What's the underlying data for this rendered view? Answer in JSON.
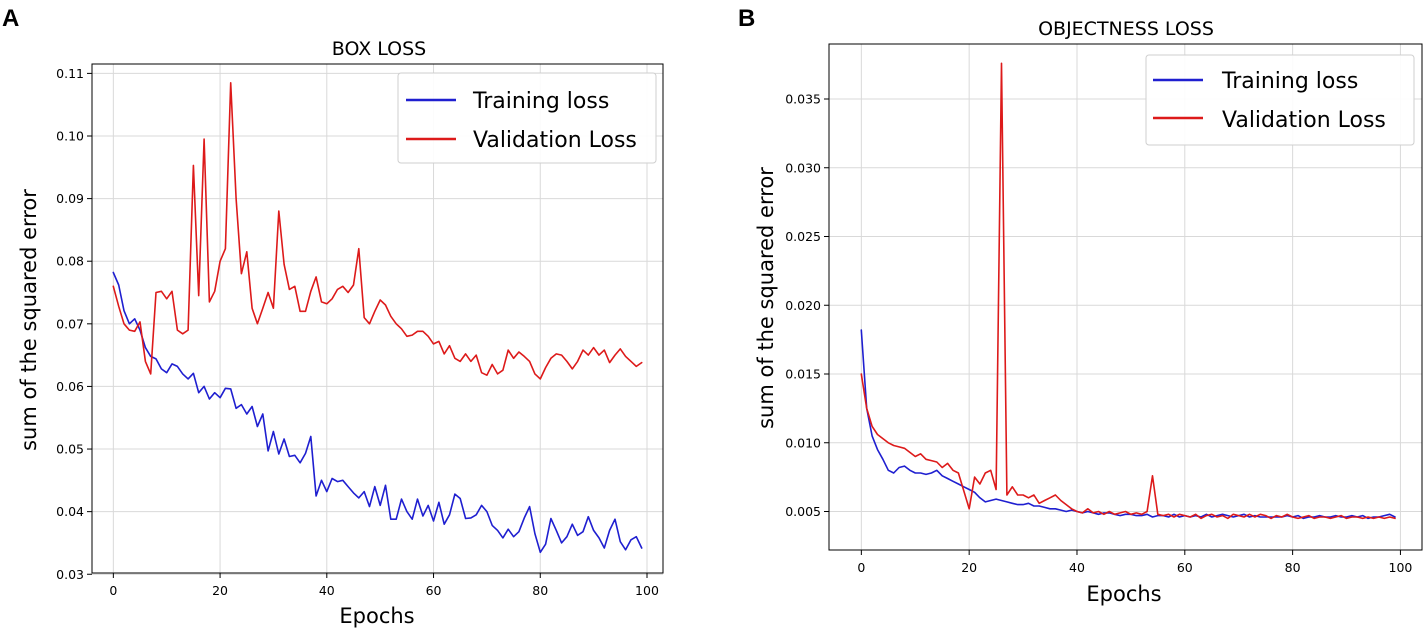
{
  "chart_data": [
    {
      "panel": "A",
      "type": "line",
      "title": "BOX LOSS",
      "xlabel": "Epochs",
      "ylabel": "sum of the squared error",
      "xlim": [
        -4,
        103
      ],
      "ylim": [
        0.0302,
        0.1115
      ],
      "xticks": [
        0,
        20,
        40,
        60,
        80,
        100
      ],
      "xtick_labels": [
        "0",
        "20",
        "40",
        "60",
        "80",
        "100"
      ],
      "yticks": [
        0.03,
        0.04,
        0.05,
        0.06,
        0.07,
        0.08,
        0.09,
        0.1,
        0.11
      ],
      "ytick_labels": [
        "0.03",
        "0.04",
        "0.05",
        "0.06",
        "0.07",
        "0.08",
        "0.09",
        "0.10",
        "0.11"
      ],
      "grid": true,
      "legend_position": "top-right",
      "series": [
        {
          "name": "Training loss",
          "color": "#1f1fd0",
          "x": [
            0,
            1,
            2,
            3,
            4,
            5,
            6,
            7,
            8,
            9,
            10,
            11,
            12,
            13,
            14,
            15,
            16,
            17,
            18,
            19,
            20,
            21,
            22,
            23,
            24,
            25,
            26,
            27,
            28,
            29,
            30,
            31,
            32,
            33,
            34,
            35,
            36,
            37,
            38,
            39,
            40,
            41,
            42,
            43,
            44,
            45,
            46,
            47,
            48,
            49,
            50,
            51,
            52,
            53,
            54,
            55,
            56,
            57,
            58,
            59,
            60,
            61,
            62,
            63,
            64,
            65,
            66,
            67,
            68,
            69,
            70,
            71,
            72,
            73,
            74,
            75,
            76,
            77,
            78,
            79,
            80,
            81,
            82,
            83,
            84,
            85,
            86,
            87,
            88,
            89,
            90,
            91,
            92,
            93,
            94,
            95,
            96,
            97,
            98,
            99
          ],
          "values": [
            0.0782,
            0.0762,
            0.0721,
            0.07,
            0.0708,
            0.069,
            0.0662,
            0.0648,
            0.0644,
            0.0628,
            0.0622,
            0.0636,
            0.0632,
            0.062,
            0.0612,
            0.0621,
            0.059,
            0.06,
            0.058,
            0.059,
            0.0582,
            0.0597,
            0.0596,
            0.0565,
            0.0571,
            0.0556,
            0.0568,
            0.0536,
            0.0556,
            0.0497,
            0.0528,
            0.0492,
            0.0516,
            0.0488,
            0.049,
            0.0478,
            0.0493,
            0.052,
            0.0425,
            0.045,
            0.0432,
            0.0453,
            0.0448,
            0.045,
            0.044,
            0.043,
            0.0422,
            0.0432,
            0.0408,
            0.044,
            0.041,
            0.0442,
            0.0388,
            0.0388,
            0.042,
            0.04,
            0.0388,
            0.042,
            0.0393,
            0.041,
            0.0385,
            0.0415,
            0.038,
            0.0395,
            0.0428,
            0.0421,
            0.0389,
            0.039,
            0.0395,
            0.041,
            0.04,
            0.0378,
            0.037,
            0.0358,
            0.0372,
            0.036,
            0.0368,
            0.039,
            0.0408,
            0.0365,
            0.0335,
            0.0348,
            0.0389,
            0.037,
            0.035,
            0.036,
            0.038,
            0.0362,
            0.0368,
            0.0392,
            0.037,
            0.0358,
            0.0342,
            0.037,
            0.0388,
            0.0352,
            0.0339,
            0.0355,
            0.036,
            0.0342
          ]
        },
        {
          "name": "Validation Loss",
          "color": "#dd1a1a",
          "x": [
            0,
            1,
            2,
            3,
            4,
            5,
            6,
            7,
            8,
            9,
            10,
            11,
            12,
            13,
            14,
            15,
            16,
            17,
            18,
            19,
            20,
            21,
            22,
            23,
            24,
            25,
            26,
            27,
            28,
            29,
            30,
            31,
            32,
            33,
            34,
            35,
            36,
            37,
            38,
            39,
            40,
            41,
            42,
            43,
            44,
            45,
            46,
            47,
            48,
            49,
            50,
            51,
            52,
            53,
            54,
            55,
            56,
            57,
            58,
            59,
            60,
            61,
            62,
            63,
            64,
            65,
            66,
            67,
            68,
            69,
            70,
            71,
            72,
            73,
            74,
            75,
            76,
            77,
            78,
            79,
            80,
            81,
            82,
            83,
            84,
            85,
            86,
            87,
            88,
            89,
            90,
            91,
            92,
            93,
            94,
            95,
            96,
            97,
            98,
            99
          ],
          "values": [
            0.076,
            0.0728,
            0.07,
            0.069,
            0.0688,
            0.0703,
            0.064,
            0.062,
            0.075,
            0.0752,
            0.074,
            0.0752,
            0.069,
            0.0684,
            0.069,
            0.0953,
            0.0745,
            0.0995,
            0.0735,
            0.0752,
            0.08,
            0.082,
            0.1085,
            0.09,
            0.078,
            0.0815,
            0.0725,
            0.07,
            0.0725,
            0.075,
            0.0725,
            0.088,
            0.0795,
            0.0755,
            0.076,
            0.072,
            0.072,
            0.0752,
            0.0775,
            0.0735,
            0.0732,
            0.074,
            0.0755,
            0.076,
            0.075,
            0.0762,
            0.082,
            0.071,
            0.07,
            0.072,
            0.0738,
            0.073,
            0.0712,
            0.07,
            0.0692,
            0.068,
            0.0682,
            0.0688,
            0.0688,
            0.068,
            0.0668,
            0.0672,
            0.0652,
            0.0665,
            0.0645,
            0.064,
            0.0652,
            0.064,
            0.065,
            0.0622,
            0.0618,
            0.0635,
            0.062,
            0.0626,
            0.0658,
            0.0645,
            0.0655,
            0.0648,
            0.064,
            0.062,
            0.0612,
            0.063,
            0.0645,
            0.0652,
            0.065,
            0.064,
            0.0628,
            0.064,
            0.0658,
            0.065,
            0.0662,
            0.065,
            0.0658,
            0.0638,
            0.065,
            0.066,
            0.0648,
            0.064,
            0.0632,
            0.0638
          ]
        }
      ]
    },
    {
      "panel": "B",
      "type": "line",
      "title": "OBJECTNESS LOSS",
      "xlabel": "Epochs",
      "ylabel": "sum of the squared error",
      "xlim": [
        -6,
        104
      ],
      "ylim": [
        0.0022,
        0.039
      ],
      "xticks": [
        0,
        20,
        40,
        60,
        80,
        100
      ],
      "xtick_labels": [
        "0",
        "20",
        "40",
        "60",
        "80",
        "100"
      ],
      "yticks": [
        0.005,
        0.01,
        0.015,
        0.02,
        0.025,
        0.03,
        0.035
      ],
      "ytick_labels": [
        "0.005",
        "0.010",
        "0.015",
        "0.020",
        "0.025",
        "0.030",
        "0.035"
      ],
      "grid": true,
      "legend_position": "top-right",
      "series": [
        {
          "name": "Training loss",
          "color": "#1f1fd0",
          "x": [
            0,
            1,
            2,
            3,
            4,
            5,
            6,
            7,
            8,
            9,
            10,
            11,
            12,
            13,
            14,
            15,
            16,
            17,
            18,
            19,
            20,
            21,
            22,
            23,
            24,
            25,
            26,
            27,
            28,
            29,
            30,
            31,
            32,
            33,
            34,
            35,
            36,
            37,
            38,
            39,
            40,
            41,
            42,
            43,
            44,
            45,
            46,
            47,
            48,
            49,
            50,
            51,
            52,
            53,
            54,
            55,
            56,
            57,
            58,
            59,
            60,
            61,
            62,
            63,
            64,
            65,
            66,
            67,
            68,
            69,
            70,
            71,
            72,
            73,
            74,
            75,
            76,
            77,
            78,
            79,
            80,
            81,
            82,
            83,
            84,
            85,
            86,
            87,
            88,
            89,
            90,
            91,
            92,
            93,
            94,
            95,
            96,
            97,
            98,
            99
          ],
          "values": [
            0.0182,
            0.0125,
            0.0105,
            0.0095,
            0.0088,
            0.008,
            0.0078,
            0.0082,
            0.0083,
            0.008,
            0.0078,
            0.0078,
            0.0077,
            0.0078,
            0.008,
            0.0076,
            0.0074,
            0.0072,
            0.007,
            0.0068,
            0.0066,
            0.0064,
            0.006,
            0.0057,
            0.0058,
            0.0059,
            0.0058,
            0.0057,
            0.0056,
            0.0055,
            0.0055,
            0.0056,
            0.0054,
            0.0054,
            0.0053,
            0.0052,
            0.0052,
            0.0051,
            0.005,
            0.0051,
            0.005,
            0.0049,
            0.005,
            0.0049,
            0.0048,
            0.0049,
            0.0049,
            0.0048,
            0.0047,
            0.0048,
            0.0048,
            0.0047,
            0.0047,
            0.0048,
            0.0046,
            0.0047,
            0.0047,
            0.0046,
            0.0048,
            0.0046,
            0.0047,
            0.0046,
            0.0047,
            0.0046,
            0.0048,
            0.0046,
            0.0047,
            0.0048,
            0.0047,
            0.0046,
            0.0047,
            0.0048,
            0.0046,
            0.0047,
            0.0046,
            0.0046,
            0.0046,
            0.0046,
            0.0046,
            0.0047,
            0.0046,
            0.0047,
            0.0045,
            0.0046,
            0.0046,
            0.0047,
            0.0046,
            0.0046,
            0.0047,
            0.0046,
            0.0046,
            0.0047,
            0.0046,
            0.0047,
            0.0045,
            0.0046,
            0.0046,
            0.0047,
            0.0048,
            0.0046
          ]
        },
        {
          "name": "Validation Loss",
          "color": "#dd1a1a",
          "x": [
            0,
            1,
            2,
            3,
            4,
            5,
            6,
            7,
            8,
            9,
            10,
            11,
            12,
            13,
            14,
            15,
            16,
            17,
            18,
            19,
            20,
            21,
            22,
            23,
            24,
            25,
            26,
            27,
            28,
            29,
            30,
            31,
            32,
            33,
            34,
            35,
            36,
            37,
            38,
            39,
            40,
            41,
            42,
            43,
            44,
            45,
            46,
            47,
            48,
            49,
            50,
            51,
            52,
            53,
            54,
            55,
            56,
            57,
            58,
            59,
            60,
            61,
            62,
            63,
            64,
            65,
            66,
            67,
            68,
            69,
            70,
            71,
            72,
            73,
            74,
            75,
            76,
            77,
            78,
            79,
            80,
            81,
            82,
            83,
            84,
            85,
            86,
            87,
            88,
            89,
            90,
            91,
            92,
            93,
            94,
            95,
            96,
            97,
            98,
            99
          ],
          "values": [
            0.015,
            0.0125,
            0.0112,
            0.0106,
            0.0103,
            0.01,
            0.0098,
            0.0097,
            0.0096,
            0.0093,
            0.009,
            0.0092,
            0.0088,
            0.0087,
            0.0086,
            0.0082,
            0.0085,
            0.008,
            0.0078,
            0.0065,
            0.0052,
            0.0075,
            0.007,
            0.0078,
            0.008,
            0.0066,
            0.0376,
            0.0062,
            0.0068,
            0.0062,
            0.0062,
            0.006,
            0.0062,
            0.0056,
            0.0058,
            0.006,
            0.0062,
            0.0058,
            0.0055,
            0.0052,
            0.005,
            0.0049,
            0.0052,
            0.0049,
            0.005,
            0.0048,
            0.005,
            0.0048,
            0.0049,
            0.005,
            0.0048,
            0.0049,
            0.0048,
            0.005,
            0.0076,
            0.0048,
            0.0047,
            0.0048,
            0.0046,
            0.0048,
            0.0047,
            0.0046,
            0.0048,
            0.0045,
            0.0047,
            0.0048,
            0.0046,
            0.0047,
            0.0045,
            0.0048,
            0.0047,
            0.0046,
            0.0048,
            0.0046,
            0.0048,
            0.0047,
            0.0045,
            0.0047,
            0.0046,
            0.0048,
            0.0046,
            0.0045,
            0.0046,
            0.0047,
            0.0045,
            0.0046,
            0.0046,
            0.0045,
            0.0046,
            0.0047,
            0.0045,
            0.0046,
            0.0046,
            0.0045,
            0.0046,
            0.0045,
            0.0046,
            0.0045,
            0.0046,
            0.0045
          ]
        }
      ]
    }
  ]
}
